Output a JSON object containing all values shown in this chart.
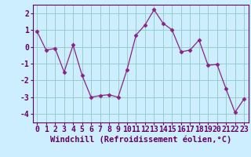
{
  "x": [
    0,
    1,
    2,
    3,
    4,
    5,
    6,
    7,
    8,
    9,
    10,
    11,
    12,
    13,
    14,
    15,
    16,
    17,
    18,
    19,
    20,
    21,
    22,
    23
  ],
  "y": [
    0.9,
    -0.2,
    -0.1,
    -1.5,
    0.1,
    -1.7,
    -3.0,
    -2.9,
    -2.85,
    -3.0,
    -1.35,
    0.7,
    1.3,
    2.2,
    1.4,
    1.0,
    -0.3,
    -0.2,
    0.4,
    -1.1,
    -1.05,
    -2.5,
    -3.9,
    -3.1
  ],
  "line_color": "#882288",
  "marker": "D",
  "marker_size": 2.5,
  "bg_color": "#cceeff",
  "grid_color": "#99cccc",
  "xlabel": "Windchill (Refroidissement éolien,°C)",
  "ylim": [
    -4.5,
    2.5
  ],
  "yticks": [
    -4,
    -3,
    -2,
    -1,
    0,
    1,
    2
  ],
  "xticks": [
    0,
    1,
    2,
    3,
    4,
    5,
    6,
    7,
    8,
    9,
    10,
    11,
    12,
    13,
    14,
    15,
    16,
    17,
    18,
    19,
    20,
    21,
    22,
    23
  ],
  "tick_fontsize": 7,
  "xlabel_fontsize": 7.5,
  "spine_color": "#660066",
  "tick_color": "#660066",
  "label_color": "#660066"
}
